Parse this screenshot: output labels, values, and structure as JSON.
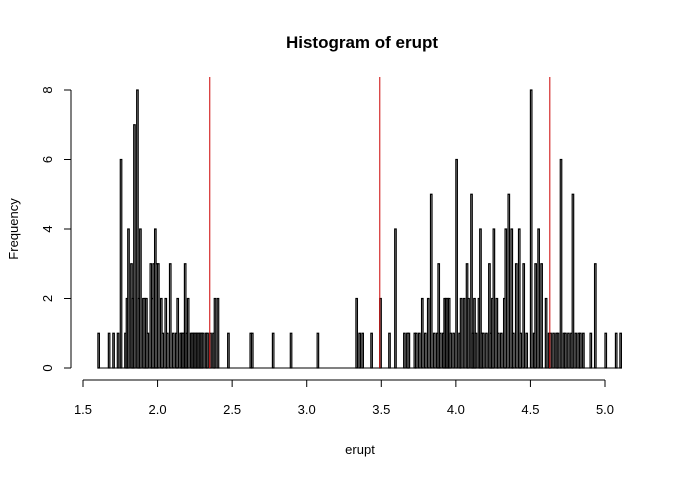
{
  "chart_data": {
    "type": "bar",
    "title": "Histogram of erupt",
    "xlabel": "erupt",
    "ylabel": "Frequency",
    "xlim": [
      1.5,
      5.1
    ],
    "ylim": [
      0,
      8
    ],
    "x_ticks": [
      1.5,
      2.0,
      2.5,
      3.0,
      3.5,
      4.0,
      4.5,
      5.0
    ],
    "x_tick_labels": [
      "1.5",
      "2.0",
      "2.5",
      "3.0",
      "3.5",
      "4.0",
      "4.5",
      "5.0"
    ],
    "y_ticks": [
      0,
      2,
      4,
      6,
      8
    ],
    "y_tick_labels": [
      "0",
      "2",
      "4",
      "6",
      "8"
    ],
    "bin_width": 0.01,
    "bins": [
      [
        1.6,
        1
      ],
      [
        1.67,
        1
      ],
      [
        1.7,
        1
      ],
      [
        1.73,
        1
      ],
      [
        1.75,
        6
      ],
      [
        1.78,
        1
      ],
      [
        1.79,
        2
      ],
      [
        1.8,
        4
      ],
      [
        1.82,
        3
      ],
      [
        1.83,
        2
      ],
      [
        1.84,
        7
      ],
      [
        1.86,
        8
      ],
      [
        1.87,
        2
      ],
      [
        1.88,
        4
      ],
      [
        1.9,
        2
      ],
      [
        1.91,
        2
      ],
      [
        1.92,
        2
      ],
      [
        1.93,
        1
      ],
      [
        1.95,
        3
      ],
      [
        1.96,
        2
      ],
      [
        1.97,
        3
      ],
      [
        1.98,
        4
      ],
      [
        1.99,
        3
      ],
      [
        2.0,
        3
      ],
      [
        2.02,
        2
      ],
      [
        2.03,
        1
      ],
      [
        2.05,
        2
      ],
      [
        2.06,
        1
      ],
      [
        2.08,
        3
      ],
      [
        2.1,
        1
      ],
      [
        2.12,
        1
      ],
      [
        2.13,
        2
      ],
      [
        2.15,
        1
      ],
      [
        2.16,
        1
      ],
      [
        2.17,
        1
      ],
      [
        2.18,
        3
      ],
      [
        2.19,
        1
      ],
      [
        2.2,
        2
      ],
      [
        2.22,
        1
      ],
      [
        2.23,
        1
      ],
      [
        2.24,
        1
      ],
      [
        2.25,
        1
      ],
      [
        2.26,
        1
      ],
      [
        2.27,
        1
      ],
      [
        2.28,
        1
      ],
      [
        2.29,
        1
      ],
      [
        2.3,
        1
      ],
      [
        2.32,
        1
      ],
      [
        2.33,
        1
      ],
      [
        2.35,
        1
      ],
      [
        2.37,
        1
      ],
      [
        2.38,
        2
      ],
      [
        2.4,
        2
      ],
      [
        2.47,
        1
      ],
      [
        2.62,
        1
      ],
      [
        2.63,
        1
      ],
      [
        2.77,
        1
      ],
      [
        2.89,
        1
      ],
      [
        3.07,
        1
      ],
      [
        3.33,
        2
      ],
      [
        3.35,
        1
      ],
      [
        3.37,
        1
      ],
      [
        3.43,
        1
      ],
      [
        3.49,
        2
      ],
      [
        3.55,
        1
      ],
      [
        3.59,
        4
      ],
      [
        3.65,
        1
      ],
      [
        3.67,
        1
      ],
      [
        3.68,
        1
      ],
      [
        3.72,
        1
      ],
      [
        3.73,
        1
      ],
      [
        3.75,
        1
      ],
      [
        3.77,
        2
      ],
      [
        3.79,
        1
      ],
      [
        3.81,
        2
      ],
      [
        3.83,
        5
      ],
      [
        3.85,
        1
      ],
      [
        3.87,
        1
      ],
      [
        3.88,
        3
      ],
      [
        3.89,
        1
      ],
      [
        3.91,
        1
      ],
      [
        3.92,
        2
      ],
      [
        3.93,
        2
      ],
      [
        3.94,
        2
      ],
      [
        3.95,
        2
      ],
      [
        3.96,
        1
      ],
      [
        3.98,
        1
      ],
      [
        4.0,
        6
      ],
      [
        4.02,
        1
      ],
      [
        4.03,
        2
      ],
      [
        4.05,
        2
      ],
      [
        4.07,
        3
      ],
      [
        4.08,
        2
      ],
      [
        4.1,
        5
      ],
      [
        4.11,
        1
      ],
      [
        4.12,
        2
      ],
      [
        4.13,
        1
      ],
      [
        4.15,
        2
      ],
      [
        4.16,
        4
      ],
      [
        4.17,
        1
      ],
      [
        4.18,
        1
      ],
      [
        4.2,
        1
      ],
      [
        4.22,
        3
      ],
      [
        4.23,
        1
      ],
      [
        4.24,
        2
      ],
      [
        4.25,
        4
      ],
      [
        4.27,
        2
      ],
      [
        4.28,
        1
      ],
      [
        4.3,
        1
      ],
      [
        4.32,
        2
      ],
      [
        4.33,
        4
      ],
      [
        4.35,
        5
      ],
      [
        4.37,
        4
      ],
      [
        4.38,
        1
      ],
      [
        4.4,
        3
      ],
      [
        4.42,
        4
      ],
      [
        4.43,
        1
      ],
      [
        4.45,
        3
      ],
      [
        4.47,
        1
      ],
      [
        4.5,
        8
      ],
      [
        4.52,
        1
      ],
      [
        4.53,
        3
      ],
      [
        4.55,
        4
      ],
      [
        4.57,
        3
      ],
      [
        4.6,
        2
      ],
      [
        4.62,
        1
      ],
      [
        4.63,
        1
      ],
      [
        4.65,
        1
      ],
      [
        4.67,
        1
      ],
      [
        4.68,
        1
      ],
      [
        4.7,
        6
      ],
      [
        4.72,
        1
      ],
      [
        4.73,
        1
      ],
      [
        4.75,
        1
      ],
      [
        4.77,
        1
      ],
      [
        4.78,
        5
      ],
      [
        4.8,
        1
      ],
      [
        4.82,
        1
      ],
      [
        4.83,
        1
      ],
      [
        4.85,
        1
      ],
      [
        4.9,
        1
      ],
      [
        4.93,
        3
      ],
      [
        5.0,
        1
      ],
      [
        5.07,
        1
      ],
      [
        5.1,
        1
      ]
    ],
    "reference_lines": [
      {
        "x": 2.35,
        "color": "#cc0000"
      },
      {
        "x": 3.49,
        "color": "#cc0000"
      },
      {
        "x": 4.63,
        "color": "#cc0000"
      }
    ],
    "bar_fill": "#ffffff",
    "bar_stroke": "#000000",
    "grid": false,
    "legend": "none"
  }
}
